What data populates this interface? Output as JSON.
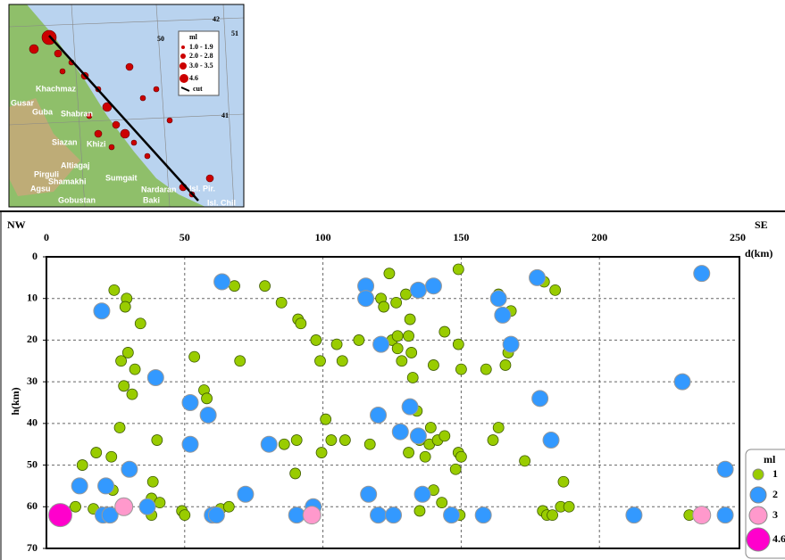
{
  "chart_data": {
    "type": "scatter",
    "corner_left": "NW",
    "corner_right": "SE",
    "x_label": "d(km)",
    "y_label": "h(km)",
    "xlim": [
      0,
      250
    ],
    "ylim": [
      0,
      70
    ],
    "y_inverted": true,
    "xticks": [
      0,
      50,
      100,
      150,
      200,
      250
    ],
    "yticks": [
      0,
      10,
      20,
      30,
      40,
      50,
      60,
      70
    ],
    "grid": true,
    "legend_title": "ml",
    "legend": "lower right",
    "series": [
      {
        "name": "1",
        "color": "#99cc00",
        "x": [
          24.5,
          29,
          28.5,
          34,
          29.5,
          27,
          32,
          28,
          31,
          26.5,
          40,
          18,
          23.5,
          13,
          38.5,
          24,
          10.5,
          17,
          38,
          41,
          38,
          49,
          50,
          53.5,
          57,
          58,
          68,
          70,
          63,
          66,
          79,
          85,
          86,
          90.5,
          90,
          91,
          92,
          97.5,
          99,
          99.5,
          101,
          103,
          105,
          107,
          108,
          113,
          117,
          124,
          121,
          122,
          126.5,
          130,
          125,
          127,
          131,
          131.5,
          127,
          128.5,
          132,
          132.5,
          134,
          131,
          135,
          137,
          138.5,
          139,
          140,
          141.5,
          144,
          144,
          140,
          143,
          135,
          149,
          149,
          149,
          150,
          148,
          150,
          149.5,
          159,
          161.5,
          163.5,
          166,
          167,
          168,
          163.5,
          173,
          180,
          184,
          179.5,
          181,
          183,
          187,
          186,
          189,
          232.5
        ],
        "y": [
          8,
          10,
          12,
          16,
          23,
          25,
          27,
          31,
          33,
          41,
          44,
          47,
          48,
          50,
          54,
          56,
          60,
          60.5,
          58,
          59,
          62,
          61,
          62,
          24,
          32,
          34,
          7,
          25,
          60.5,
          60,
          7,
          11,
          45,
          44,
          52,
          15,
          16,
          20,
          25,
          47,
          39,
          44,
          21,
          25,
          44,
          20,
          45,
          4,
          10,
          12,
          11,
          9,
          20,
          19,
          19,
          15,
          22,
          25,
          23,
          29,
          37,
          47,
          44,
          48,
          45,
          41,
          26,
          44,
          43,
          18,
          56,
          59,
          61,
          3,
          21,
          47,
          48,
          51,
          27,
          62,
          27,
          44,
          41,
          26,
          23,
          13,
          9,
          49,
          6,
          8,
          61,
          62,
          62,
          54,
          60,
          60,
          62
        ]
      },
      {
        "name": "2",
        "color": "#3399ff",
        "x": [
          20,
          39.5,
          52,
          58.5,
          52,
          63.5,
          30,
          12,
          21.5,
          20.5,
          23,
          36.5,
          60,
          61.5,
          72,
          80.5,
          96.5,
          90.5,
          115.5,
          115.5,
          121,
          120,
          116.5,
          120,
          125.5,
          128,
          131.5,
          134.5,
          134.5,
          140,
          136,
          146.5,
          158,
          163.5,
          165,
          168,
          177.5,
          178.5,
          182.5,
          212.5,
          230,
          237,
          245.5,
          245.5
        ],
        "y": [
          13,
          29,
          35,
          38,
          45,
          6,
          51,
          55,
          55,
          62,
          62,
          60,
          62,
          62,
          57,
          45,
          60,
          62,
          7,
          10,
          21,
          38,
          57,
          62,
          62,
          42,
          36,
          43,
          8,
          7,
          57,
          62,
          62,
          10,
          14,
          21,
          5,
          34,
          44,
          62,
          30,
          4,
          51,
          62
        ]
      },
      {
        "name": "3",
        "color": "#ff99cc",
        "x": [
          28,
          96,
          237
        ],
        "y": [
          60,
          62,
          62
        ]
      },
      {
        "name": "4.6",
        "color": "#ff00cc",
        "x": [
          5
        ],
        "y": [
          62
        ]
      }
    ]
  },
  "map": {
    "labels": [
      "42",
      "50",
      "51",
      "41",
      "Khachmaz",
      "Gusar",
      "Guba",
      "Shabran",
      "Siazan",
      "Khizi",
      "Altiagaj",
      "Pirguli",
      "Shamakhi",
      "Agsu",
      "Sumgait",
      "Gobustan",
      "Nardaran",
      "Baki",
      "Isl. Pir.",
      "Isl. Chil"
    ],
    "legend_title": "ml",
    "legend_items": [
      "1.0 - 1.9",
      "2.0 - 2.8",
      "3.0 - 3.5",
      "4.6"
    ],
    "cut_label": "cut"
  }
}
